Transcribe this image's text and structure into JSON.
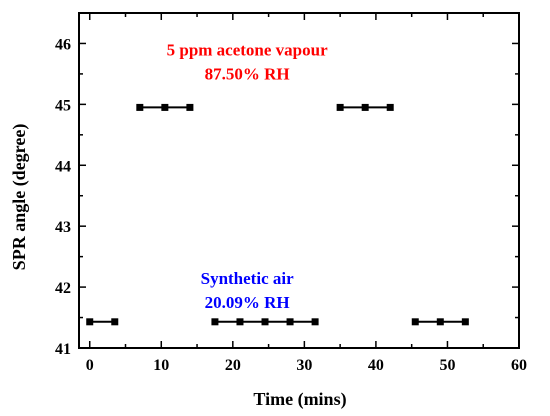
{
  "chart_data": {
    "type": "line",
    "xlabel": "Time (mins)",
    "ylabel": "SPR angle (degree)",
    "xlim": [
      -1.5,
      60
    ],
    "ylim": [
      41,
      46.5
    ],
    "xticks": [
      0,
      10,
      20,
      30,
      40,
      50,
      60
    ],
    "yticks": [
      41,
      42,
      43,
      44,
      45,
      46
    ],
    "grid": false,
    "series": [
      {
        "values": [
          [
            0,
            41.43
          ],
          [
            3.5,
            41.43
          ]
        ]
      },
      {
        "values": [
          [
            7,
            44.95
          ],
          [
            10.5,
            44.95
          ],
          [
            14,
            44.95
          ]
        ]
      },
      {
        "values": [
          [
            17.5,
            41.43
          ],
          [
            21,
            41.43
          ],
          [
            24.5,
            41.43
          ],
          [
            28,
            41.43
          ],
          [
            31.5,
            41.43
          ]
        ]
      },
      {
        "values": [
          [
            35,
            44.95
          ],
          [
            38.5,
            44.95
          ],
          [
            42,
            44.95
          ]
        ]
      },
      {
        "values": [
          [
            45.5,
            41.43
          ],
          [
            49,
            41.43
          ],
          [
            52.5,
            41.43
          ]
        ]
      }
    ],
    "annotations": [
      {
        "lines": [
          "5 ppm acetone vapour",
          "87.50% RH"
        ],
        "color": "#ff0000",
        "x": 22,
        "y": 45.8
      },
      {
        "lines": [
          "Synthetic air",
          "20.09% RH"
        ],
        "color": "#0000ff",
        "x": 22,
        "y": 42.05
      }
    ]
  }
}
